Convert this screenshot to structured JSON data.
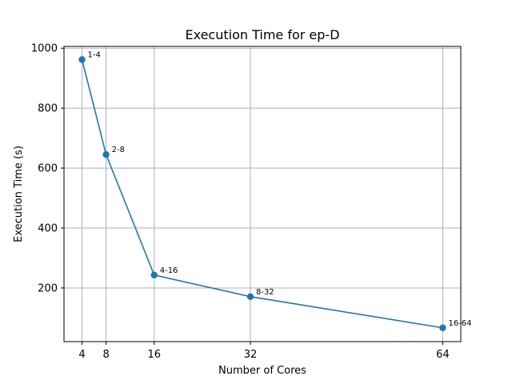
{
  "chart_data": {
    "type": "line",
    "title": "Execution Time for ep-D",
    "xlabel": "Number of Cores",
    "ylabel": "Execution Time (s)",
    "x": [
      4,
      8,
      16,
      32,
      64
    ],
    "xticks": [
      4,
      8,
      16,
      32,
      64
    ],
    "yticks": [
      200,
      400,
      600,
      800,
      1000
    ],
    "xlim": [
      1.0,
      67.0
    ],
    "ylim": [
      21,
      1006
    ],
    "grid": true,
    "series": [
      {
        "values": [
          962,
          645,
          243,
          171,
          67
        ],
        "labels": [
          "1-4",
          "2-8",
          "4-16",
          "8-32",
          "16-64"
        ],
        "color": "#1f77b4",
        "marker": "circle"
      }
    ]
  }
}
